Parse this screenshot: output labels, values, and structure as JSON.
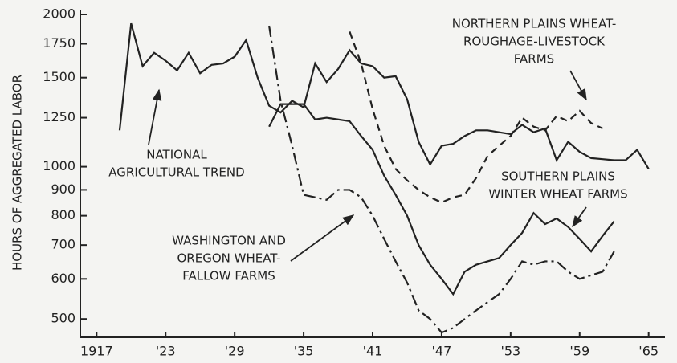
{
  "chart_data": {
    "type": "line",
    "y_label": "HOURS OF AGGREGATED LABOR",
    "log_y": true,
    "xlim": [
      1916,
      1966
    ],
    "xticks": [
      1917,
      {
        "value": 1923,
        "label": "'23"
      },
      {
        "value": 1929,
        "label": "'29"
      },
      {
        "value": 1935,
        "label": "'35"
      },
      {
        "value": 1941,
        "label": "'41"
      },
      {
        "value": 1947,
        "label": "'47"
      },
      {
        "value": 1953,
        "label": "'53"
      },
      {
        "value": 1959,
        "label": "'59"
      },
      {
        "value": 1965,
        "label": "'65"
      }
    ],
    "ylim": [
      460,
      2000
    ],
    "yticks": [
      500,
      600,
      700,
      800,
      900,
      1000,
      1250,
      1500,
      1750,
      2000
    ],
    "series": [
      {
        "label": [
          "NATIONAL",
          "AGRICULTURAL TREND"
        ],
        "style": "solid",
        "color": "#222222",
        "x": [
          1919,
          1920,
          1921,
          1922,
          1923,
          1924,
          1925,
          1926,
          1927,
          1928,
          1929,
          1930,
          1931,
          1932,
          1933,
          1934,
          1935,
          1936,
          1937,
          1938,
          1939,
          1940,
          1941,
          1942,
          1943,
          1944,
          1945,
          1946,
          1947,
          1948,
          1949,
          1950,
          1951,
          1952,
          1953,
          1954,
          1955,
          1956,
          1957,
          1958,
          1959,
          1960,
          1961,
          1962,
          1963,
          1964,
          1965
        ],
        "values": [
          1180,
          1920,
          1580,
          1680,
          1620,
          1550,
          1680,
          1530,
          1590,
          1600,
          1650,
          1780,
          1500,
          1320,
          1280,
          1350,
          1310,
          1600,
          1470,
          1560,
          1700,
          1600,
          1580,
          1500,
          1510,
          1360,
          1120,
          1010,
          1100,
          1110,
          1150,
          1180,
          1180,
          1170,
          1160,
          1210,
          1170,
          1190,
          1030,
          1120,
          1070,
          1040,
          1035,
          1030,
          1030,
          1080,
          990
        ]
      },
      {
        "label": [
          "SOUTHERN PLAINS",
          "WINTER WHEAT FARMS"
        ],
        "style": "solid",
        "color": "#222222",
        "x": [
          1932,
          1933,
          1934,
          1935,
          1936,
          1937,
          1938,
          1939,
          1940,
          1941,
          1942,
          1943,
          1944,
          1945,
          1946,
          1947,
          1948,
          1949,
          1950,
          1951,
          1952,
          1953,
          1954,
          1955,
          1956,
          1957,
          1958,
          1959,
          1960,
          1961,
          1962
        ],
        "values": [
          1200,
          1330,
          1330,
          1330,
          1240,
          1250,
          1240,
          1230,
          1150,
          1080,
          960,
          880,
          800,
          700,
          640,
          600,
          560,
          620,
          640,
          650,
          660,
          700,
          740,
          810,
          770,
          790,
          760,
          720,
          680,
          730,
          780
        ]
      },
      {
        "label": [
          "NORTHERN PLAINS WHEAT-",
          "ROUGHAGE-LIVESTOCK",
          "FARMS"
        ],
        "style": "dashed",
        "color": "#222222",
        "x": [
          1939,
          1940,
          1941,
          1942,
          1943,
          1944,
          1945,
          1946,
          1947,
          1948,
          1949,
          1950,
          1951,
          1952,
          1953,
          1954,
          1955,
          1956,
          1957,
          1958,
          1959,
          1960,
          1961
        ],
        "values": [
          1850,
          1600,
          1300,
          1100,
          990,
          940,
          900,
          870,
          850,
          870,
          880,
          950,
          1050,
          1100,
          1150,
          1250,
          1200,
          1180,
          1260,
          1230,
          1290,
          1220,
          1190
        ]
      },
      {
        "label": [
          "WASHINGTON AND",
          "OREGON WHEAT-",
          "FALLOW FARMS"
        ],
        "style": "dashdot",
        "color": "#222222",
        "x": [
          1932,
          1933,
          1934,
          1935,
          1936,
          1937,
          1938,
          1939,
          1940,
          1941,
          1942,
          1943,
          1944,
          1945,
          1946,
          1947,
          1948,
          1949,
          1950,
          1951,
          1952,
          1953,
          1954,
          1955,
          1956,
          1957,
          1958,
          1959,
          1960,
          1961,
          1962
        ],
        "values": [
          1900,
          1350,
          1100,
          880,
          870,
          860,
          900,
          900,
          870,
          800,
          720,
          650,
          590,
          520,
          500,
          470,
          480,
          500,
          520,
          540,
          560,
          600,
          650,
          640,
          650,
          650,
          620,
          600,
          610,
          620,
          680
        ]
      }
    ]
  }
}
